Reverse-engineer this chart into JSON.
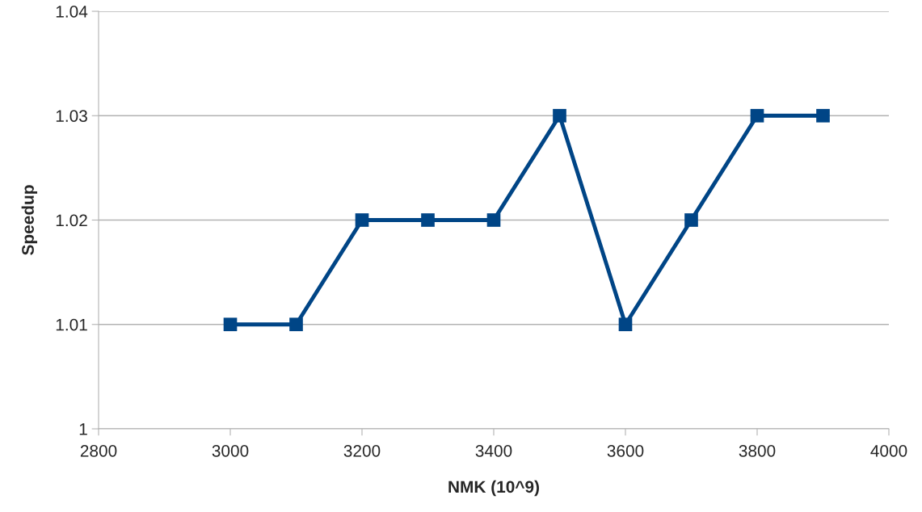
{
  "chart_data": {
    "type": "line",
    "xlabel": "NMK (10^9)",
    "ylabel": "Speedup",
    "x": [
      3000,
      3100,
      3200,
      3300,
      3400,
      3500,
      3600,
      3700,
      3800,
      3900
    ],
    "series": [
      {
        "color": "#004586",
        "values": [
          1.01,
          1.01,
          1.02,
          1.02,
          1.02,
          1.03,
          1.01,
          1.02,
          1.03,
          1.03
        ]
      }
    ],
    "xlim": [
      2800,
      4000
    ],
    "xticks": [
      2800,
      3000,
      3200,
      3400,
      3600,
      3800,
      4000
    ],
    "ylim": [
      1,
      1.04
    ],
    "yticks": [
      1,
      1.01,
      1.02,
      1.03,
      1.04
    ],
    "grid": "y",
    "marker": "square",
    "line_style": "solid"
  }
}
